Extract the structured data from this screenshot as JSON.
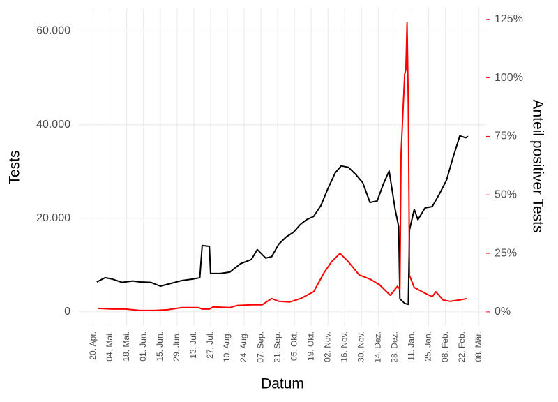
{
  "chart_data": {
    "type": "line",
    "x_label": "Datum",
    "y_label": "Tests",
    "y2_label": "Anteil positiver Tests",
    "grid": true,
    "xlim": [
      -12,
      328
    ],
    "xticks": [
      {
        "value": 0,
        "label": "20. Apr."
      },
      {
        "value": 14,
        "label": "04. Mai."
      },
      {
        "value": 28,
        "label": "18. Mai."
      },
      {
        "value": 42,
        "label": "01. Jun."
      },
      {
        "value": 56,
        "label": "15. Jun."
      },
      {
        "value": 70,
        "label": "29. Jun."
      },
      {
        "value": 84,
        "label": "13. Jul."
      },
      {
        "value": 98,
        "label": "27. Jul."
      },
      {
        "value": 112,
        "label": "10. Aug."
      },
      {
        "value": 126,
        "label": "24. Aug."
      },
      {
        "value": 140,
        "label": "07. Sep."
      },
      {
        "value": 154,
        "label": "21. Sep."
      },
      {
        "value": 168,
        "label": "05. Okt."
      },
      {
        "value": 182,
        "label": "19. Okt."
      },
      {
        "value": 196,
        "label": "02. Nov."
      },
      {
        "value": 210,
        "label": "16. Nov."
      },
      {
        "value": 224,
        "label": "30. Nov."
      },
      {
        "value": 238,
        "label": "14. Dez."
      },
      {
        "value": 252,
        "label": "28. Dez."
      },
      {
        "value": 266,
        "label": "11. Jan."
      },
      {
        "value": 280,
        "label": "25. Jan."
      },
      {
        "value": 294,
        "label": "08. Feb."
      },
      {
        "value": 308,
        "label": "22. Feb."
      },
      {
        "value": 322,
        "label": "08. Mär."
      }
    ],
    "ylim": [
      -3000,
      65000
    ],
    "yticks": [
      0,
      {
        "value": 20000,
        "label": "20.000"
      },
      {
        "value": 40000,
        "label": "40.000"
      },
      {
        "value": 60000,
        "label": "60.000"
      }
    ],
    "y2lim": [
      -6,
      130
    ],
    "y2ticks": [
      {
        "value": 0,
        "label": "0%"
      },
      {
        "value": 25,
        "label": "25%"
      },
      {
        "value": 50,
        "label": "50%"
      },
      {
        "value": 75,
        "label": "75%"
      },
      {
        "value": 100,
        "label": "100%"
      },
      {
        "value": 125,
        "label": "125%"
      }
    ],
    "y2_color": "#ff0000",
    "series": [
      {
        "color": "#000000",
        "x": [
          3,
          10,
          16,
          24,
          33,
          39,
          48,
          56,
          65,
          74,
          83,
          89,
          91,
          97,
          98,
          106,
          114,
          123,
          132,
          137,
          144,
          149,
          155,
          161,
          167,
          173,
          178,
          184,
          190,
          196,
          202,
          207,
          213,
          219,
          225,
          231,
          237,
          242,
          247,
          252,
          255,
          256,
          260,
          263,
          264,
          268,
          271,
          277,
          283,
          289,
          295,
          300,
          306,
          311,
          313
        ],
        "values": [
          6400,
          7300,
          7000,
          6300,
          6600,
          6400,
          6300,
          5500,
          6100,
          6700,
          7000,
          7300,
          14200,
          14000,
          8200,
          8200,
          8500,
          10300,
          11200,
          13300,
          11500,
          11800,
          14500,
          16000,
          17000,
          18700,
          19700,
          20400,
          22700,
          26400,
          29700,
          31200,
          30900,
          29400,
          27600,
          23400,
          23700,
          27200,
          30100,
          21900,
          18200,
          2800,
          1800,
          1600,
          17500,
          21900,
          19700,
          22200,
          22500,
          25200,
          28200,
          32700,
          37600,
          37200,
          37500
        ]
      },
      {
        "color": "#ff0000",
        "axis": "y2",
        "x": [
          4,
          16,
          27,
          39,
          51,
          62,
          74,
          88,
          91,
          97,
          100,
          114,
          120,
          132,
          141,
          149,
          155,
          164,
          173,
          184,
          193,
          199,
          206,
          213,
          222,
          231,
          239,
          248,
          254,
          256,
          257,
          260,
          261,
          262,
          263,
          264,
          268,
          277,
          283,
          286,
          292,
          298,
          306,
          312
        ],
        "values": [
          1.5,
          1.2,
          1.2,
          0.6,
          0.6,
          0.9,
          1.8,
          1.8,
          1.2,
          1.2,
          2.1,
          1.8,
          2.7,
          3.0,
          3.0,
          5.7,
          4.5,
          4.2,
          5.7,
          8.6,
          17.0,
          21.4,
          25.0,
          21.4,
          15.8,
          14.0,
          11.6,
          7.1,
          11.0,
          9.5,
          67.6,
          101.8,
          103.3,
          123.5,
          88.4,
          15.5,
          10.4,
          8.0,
          6.5,
          8.6,
          5.1,
          4.5,
          5.1,
          5.7
        ]
      }
    ]
  }
}
